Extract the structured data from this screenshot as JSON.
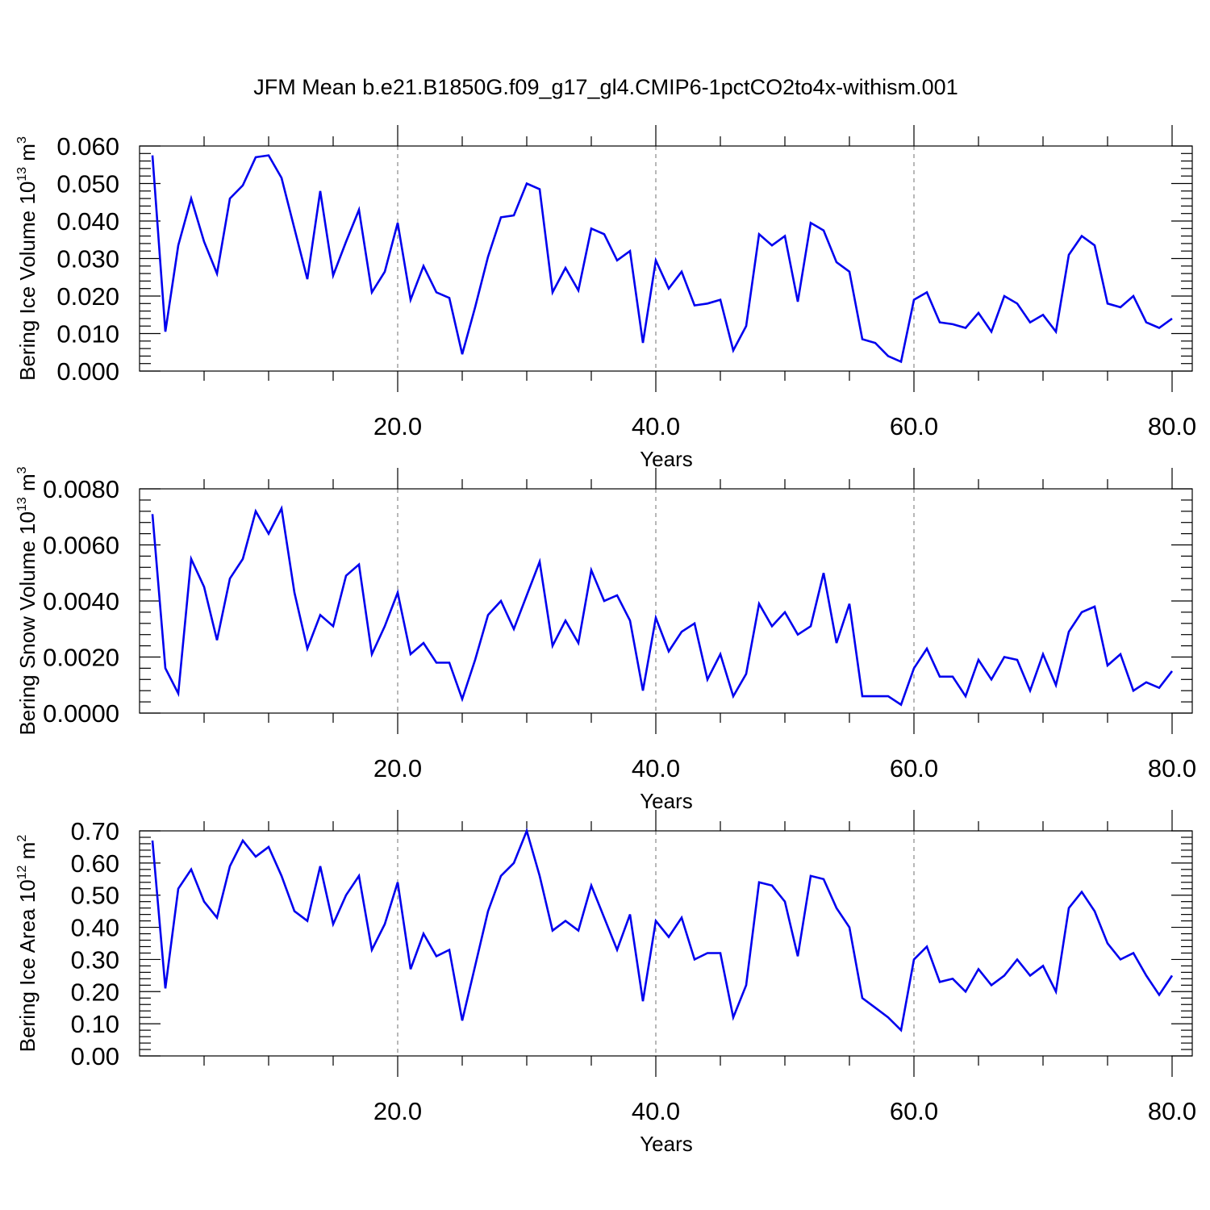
{
  "title": "JFM Mean b.e21.B1850G.f09_g17_gl4.CMIP6-1pctCO2to4x-withism.001",
  "chart_data": [
    {
      "type": "line",
      "ylabel": {
        "text": "Bering Ice Volume 10",
        "sup": "13",
        "unit": " m",
        "unit_sup": "3"
      },
      "xlabel": "Years",
      "xlim": [
        0,
        80
      ],
      "ylim": [
        0,
        0.06
      ],
      "xticks": [
        20,
        40,
        60,
        80
      ],
      "xtick_labels": [
        "20.0",
        "40.0",
        "60.0",
        "80.0"
      ],
      "yticks": [
        0,
        0.01,
        0.02,
        0.03,
        0.04,
        0.05,
        0.06
      ],
      "ytick_labels": [
        "0.000",
        "0.010",
        "0.020",
        "0.030",
        "0.040",
        "0.050",
        "0.060"
      ],
      "grid": "dashed vertical at x ticks",
      "color": "#0000ee",
      "x": [
        1,
        2,
        3,
        4,
        5,
        6,
        7,
        8,
        9,
        10,
        11,
        12,
        13,
        14,
        15,
        16,
        17,
        18,
        19,
        20,
        21,
        22,
        23,
        24,
        25,
        26,
        27,
        28,
        29,
        30,
        31,
        32,
        33,
        34,
        35,
        36,
        37,
        38,
        39,
        40,
        41,
        42,
        43,
        44,
        45,
        46,
        47,
        48,
        49,
        50,
        51,
        52,
        53,
        54,
        55,
        56,
        57,
        58,
        59,
        60,
        61,
        62,
        63,
        64,
        65,
        66,
        67,
        68,
        69,
        70,
        71,
        72,
        73,
        74,
        75,
        76,
        77,
        78,
        79,
        80
      ],
      "values": [
        0.0575,
        0.0105,
        0.0335,
        0.046,
        0.0345,
        0.026,
        0.046,
        0.0495,
        0.057,
        0.0575,
        0.0515,
        0.038,
        0.0245,
        0.048,
        0.0255,
        0.0345,
        0.043,
        0.021,
        0.0265,
        0.0395,
        0.019,
        0.028,
        0.021,
        0.0195,
        0.0045,
        0.017,
        0.0305,
        0.041,
        0.0415,
        0.05,
        0.0485,
        0.021,
        0.0275,
        0.0215,
        0.038,
        0.0365,
        0.0295,
        0.032,
        0.0075,
        0.0295,
        0.022,
        0.0265,
        0.0175,
        0.018,
        0.019,
        0.0055,
        0.012,
        0.0365,
        0.0335,
        0.036,
        0.0185,
        0.0395,
        0.0375,
        0.029,
        0.0265,
        0.0085,
        0.0075,
        0.004,
        0.0025,
        0.019,
        0.021,
        0.013,
        0.0125,
        0.0115,
        0.0155,
        0.0105,
        0.02,
        0.018,
        0.013,
        0.015,
        0.0105,
        0.031,
        0.036,
        0.0335,
        0.018,
        0.017,
        0.02,
        0.013,
        0.0115,
        0.014
      ]
    },
    {
      "type": "line",
      "ylabel": {
        "text": "Bering Snow Volume 10",
        "sup": "13",
        "unit": " m",
        "unit_sup": "3"
      },
      "xlabel": "Years",
      "xlim": [
        0,
        80
      ],
      "ylim": [
        0,
        0.008
      ],
      "xticks": [
        20,
        40,
        60,
        80
      ],
      "xtick_labels": [
        "20.0",
        "40.0",
        "60.0",
        "80.0"
      ],
      "yticks": [
        0,
        0.002,
        0.004,
        0.006,
        0.008
      ],
      "ytick_labels": [
        "0.0000",
        "0.0020",
        "0.0040",
        "0.0060",
        "0.0080"
      ],
      "grid": "dashed vertical at x ticks",
      "color": "#0000ee",
      "x": [
        1,
        2,
        3,
        4,
        5,
        6,
        7,
        8,
        9,
        10,
        11,
        12,
        13,
        14,
        15,
        16,
        17,
        18,
        19,
        20,
        21,
        22,
        23,
        24,
        25,
        26,
        27,
        28,
        29,
        30,
        31,
        32,
        33,
        34,
        35,
        36,
        37,
        38,
        39,
        40,
        41,
        42,
        43,
        44,
        45,
        46,
        47,
        48,
        49,
        50,
        51,
        52,
        53,
        54,
        55,
        56,
        57,
        58,
        59,
        60,
        61,
        62,
        63,
        64,
        65,
        66,
        67,
        68,
        69,
        70,
        71,
        72,
        73,
        74,
        75,
        76,
        77,
        78,
        79,
        80
      ],
      "values": [
        0.0071,
        0.0016,
        0.0007,
        0.0055,
        0.0045,
        0.0026,
        0.0048,
        0.0055,
        0.0072,
        0.0064,
        0.0073,
        0.0043,
        0.0023,
        0.0035,
        0.0031,
        0.0049,
        0.0053,
        0.0021,
        0.0031,
        0.0043,
        0.0021,
        0.0025,
        0.0018,
        0.0018,
        0.0005,
        0.0019,
        0.0035,
        0.004,
        0.003,
        0.0042,
        0.0054,
        0.0024,
        0.0033,
        0.0025,
        0.0051,
        0.004,
        0.0042,
        0.0033,
        0.0008,
        0.0034,
        0.0022,
        0.0029,
        0.0032,
        0.0012,
        0.0021,
        0.0006,
        0.0014,
        0.0039,
        0.0031,
        0.0036,
        0.0028,
        0.0031,
        0.005,
        0.0025,
        0.0039,
        0.0006,
        0.0006,
        0.0006,
        0.0003,
        0.0016,
        0.0023,
        0.0013,
        0.0013,
        0.0006,
        0.0019,
        0.0012,
        0.002,
        0.0019,
        0.0008,
        0.0021,
        0.001,
        0.0029,
        0.0036,
        0.0038,
        0.0017,
        0.0021,
        0.0008,
        0.0011,
        0.0009,
        0.0015
      ]
    },
    {
      "type": "line",
      "ylabel": {
        "text": "Bering Ice Area 10",
        "sup": "12",
        "unit": " m",
        "unit_sup": "2"
      },
      "xlabel": "Years",
      "xlim": [
        0,
        80
      ],
      "ylim": [
        0,
        0.7
      ],
      "xticks": [
        20,
        40,
        60,
        80
      ],
      "xtick_labels": [
        "20.0",
        "40.0",
        "60.0",
        "80.0"
      ],
      "yticks": [
        0,
        0.1,
        0.2,
        0.3,
        0.4,
        0.5,
        0.6,
        0.7
      ],
      "ytick_labels": [
        "0.00",
        "0.10",
        "0.20",
        "0.30",
        "0.40",
        "0.50",
        "0.60",
        "0.70"
      ],
      "grid": "dashed vertical at x ticks",
      "color": "#0000ee",
      "x": [
        1,
        2,
        3,
        4,
        5,
        6,
        7,
        8,
        9,
        10,
        11,
        12,
        13,
        14,
        15,
        16,
        17,
        18,
        19,
        20,
        21,
        22,
        23,
        24,
        25,
        26,
        27,
        28,
        29,
        30,
        31,
        32,
        33,
        34,
        35,
        36,
        37,
        38,
        39,
        40,
        41,
        42,
        43,
        44,
        45,
        46,
        47,
        48,
        49,
        50,
        51,
        52,
        53,
        54,
        55,
        56,
        57,
        58,
        59,
        60,
        61,
        62,
        63,
        64,
        65,
        66,
        67,
        68,
        69,
        70,
        71,
        72,
        73,
        74,
        75,
        76,
        77,
        78,
        79,
        80
      ],
      "values": [
        0.67,
        0.21,
        0.52,
        0.58,
        0.48,
        0.43,
        0.59,
        0.67,
        0.62,
        0.65,
        0.56,
        0.45,
        0.42,
        0.59,
        0.41,
        0.5,
        0.56,
        0.33,
        0.41,
        0.54,
        0.27,
        0.38,
        0.31,
        0.33,
        0.11,
        0.28,
        0.45,
        0.56,
        0.6,
        0.7,
        0.56,
        0.39,
        0.42,
        0.39,
        0.53,
        0.43,
        0.33,
        0.44,
        0.17,
        0.42,
        0.37,
        0.43,
        0.3,
        0.32,
        0.32,
        0.12,
        0.22,
        0.54,
        0.53,
        0.48,
        0.31,
        0.56,
        0.55,
        0.46,
        0.4,
        0.18,
        0.15,
        0.12,
        0.08,
        0.3,
        0.34,
        0.23,
        0.24,
        0.2,
        0.27,
        0.22,
        0.25,
        0.3,
        0.25,
        0.28,
        0.2,
        0.46,
        0.51,
        0.45,
        0.35,
        0.3,
        0.32,
        0.25,
        0.19,
        0.25
      ]
    }
  ]
}
